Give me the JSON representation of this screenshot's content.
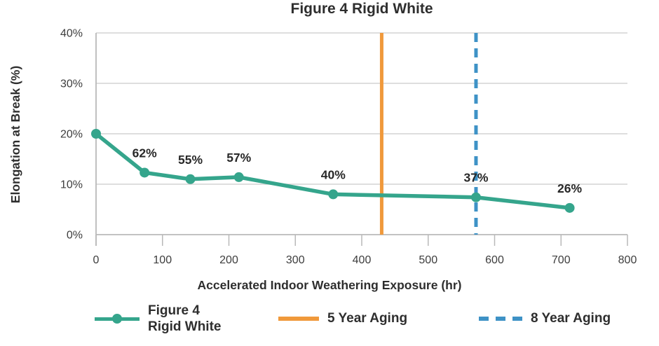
{
  "title": "Figure 4 Rigid White",
  "colors": {
    "series": "#35A58C",
    "five_year": "#F0993B",
    "eight_year": "#3E92C6",
    "grid": "#D4D4D4",
    "axis": "#B9B9B9",
    "text": "#2E2E2E"
  },
  "axes": {
    "x_title": "Accelerated Indoor Weathering Exposure (hr)",
    "y_title": "Elongation at Break (%)"
  },
  "legend": {
    "series_label_line1": "Figure 4",
    "series_label_line2": "Rigid White",
    "five_year_label": "5 Year Aging",
    "eight_year_label": "8 Year Aging"
  },
  "chart_data": {
    "type": "line",
    "title": "Figure 4 Rigid White",
    "xlabel": "Accelerated Indoor Weathering Exposure (hr)",
    "ylabel": "Elongation at Break (%)",
    "xlim": [
      0,
      800
    ],
    "ylim": [
      0,
      40
    ],
    "grid": true,
    "legend_position": "bottom",
    "x_ticks": [
      {
        "value": 0,
        "label": "0"
      },
      {
        "value": 100,
        "label": "100"
      },
      {
        "value": 200,
        "label": "200"
      },
      {
        "value": 300,
        "label": "300"
      },
      {
        "value": 400,
        "label": "400"
      },
      {
        "value": 500,
        "label": "500"
      },
      {
        "value": 600,
        "label": "600"
      },
      {
        "value": 700,
        "label": "700"
      },
      {
        "value": 800,
        "label": "800"
      }
    ],
    "y_ticks": [
      {
        "value": 0,
        "label": "0%"
      },
      {
        "value": 10,
        "label": "10%"
      },
      {
        "value": 20,
        "label": "20%"
      },
      {
        "value": 30,
        "label": "30%"
      },
      {
        "value": 40,
        "label": "40%"
      }
    ],
    "series": [
      {
        "name": "Figure 4 Rigid White",
        "x": [
          0,
          73,
          142,
          215,
          357,
          572,
          713
        ],
        "y": [
          20,
          12.3,
          11.0,
          11.4,
          8.0,
          7.4,
          5.3
        ],
        "point_labels": [
          "",
          "62%",
          "55%",
          "57%",
          "40%",
          "37%",
          "26%"
        ]
      }
    ],
    "vlines": [
      {
        "name": "5 Year Aging",
        "x": 430,
        "style": "solid",
        "color": "#F0993B"
      },
      {
        "name": "8 Year Aging",
        "x": 572,
        "style": "dashed",
        "color": "#3E92C6"
      }
    ]
  }
}
